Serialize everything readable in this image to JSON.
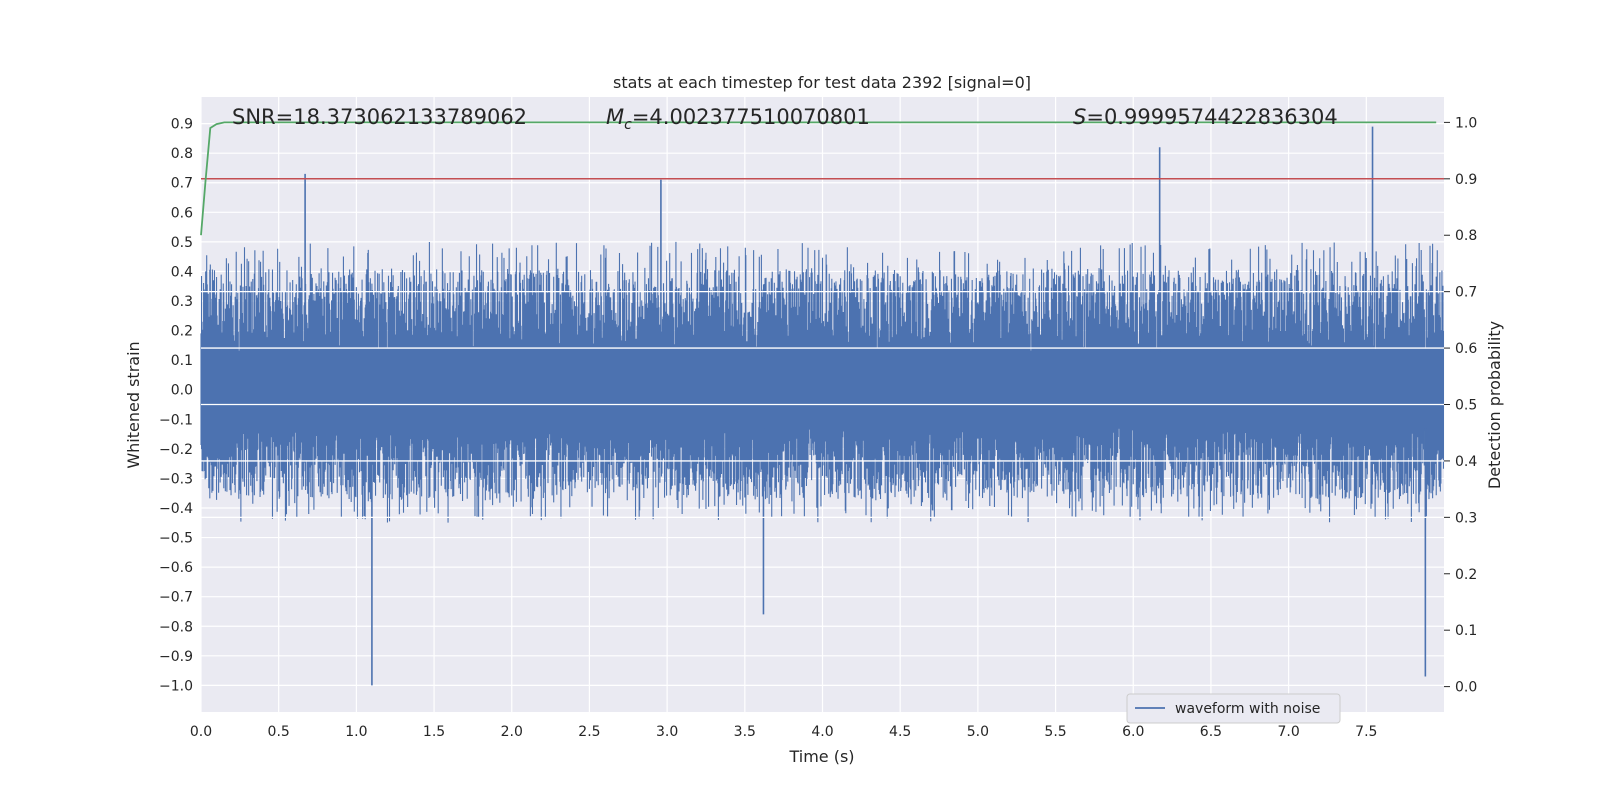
{
  "chart_data": {
    "type": "line",
    "title": "stats at each timestep for test data 2392 [signal=0]",
    "xlabel": "Time (s)",
    "ylabel_left": "Whitened strain",
    "ylabel_right": "Detection probability",
    "xlim": [
      0.0,
      8.0
    ],
    "ylim_left": [
      -1.09,
      0.99
    ],
    "ylim_right": [
      -0.045,
      1.045
    ],
    "x_ticks": [
      0.0,
      0.5,
      1.0,
      1.5,
      2.0,
      2.5,
      3.0,
      3.5,
      4.0,
      4.5,
      5.0,
      5.5,
      6.0,
      6.5,
      7.0,
      7.5
    ],
    "x_tick_labels": [
      "0.0",
      "0.5",
      "1.0",
      "1.5",
      "2.0",
      "2.5",
      "3.0",
      "3.5",
      "4.0",
      "4.5",
      "5.0",
      "5.5",
      "6.0",
      "6.5",
      "7.0",
      "7.5"
    ],
    "y_left_ticks": [
      0.9,
      0.8,
      0.7,
      0.6,
      0.5,
      0.4,
      0.3,
      0.2,
      0.1,
      0.0,
      -0.1,
      -0.2,
      -0.3,
      -0.4,
      -0.5,
      -0.6,
      -0.7,
      -0.8,
      -0.9,
      -1.0
    ],
    "y_left_tick_labels": [
      "0.9",
      "0.8",
      "0.7",
      "0.6",
      "0.5",
      "0.4",
      "0.3",
      "0.2",
      "0.1",
      "0.0",
      "−0.1",
      "−0.2",
      "−0.3",
      "−0.4",
      "−0.5",
      "−0.6",
      "−0.7",
      "−0.8",
      "−0.9",
      "−1.0"
    ],
    "y_right_ticks": [
      1.0,
      0.9,
      0.8,
      0.7,
      0.6,
      0.5,
      0.4,
      0.3,
      0.2,
      0.1,
      0.0
    ],
    "y_right_tick_labels": [
      "1.0",
      "0.9",
      "0.8",
      "0.7",
      "0.6",
      "0.5",
      "0.4",
      "0.3",
      "0.2",
      "0.1",
      "0.0"
    ],
    "grid": true,
    "series": [
      {
        "name": "waveform with noise",
        "axis": "left",
        "color": "#4c72b0",
        "kind": "noise",
        "duration": 8.0,
        "core_half_range": 0.13,
        "typical_pos_peak": 0.5,
        "typical_neg_peak": -0.45,
        "notable_peaks": [
          {
            "x": 0.67,
            "y": 0.73
          },
          {
            "x": 1.1,
            "y": -1.0
          },
          {
            "x": 2.96,
            "y": 0.71
          },
          {
            "x": 3.62,
            "y": -0.76
          },
          {
            "x": 6.17,
            "y": 0.82
          },
          {
            "x": 7.54,
            "y": 0.89
          },
          {
            "x": 7.88,
            "y": -0.97
          }
        ]
      },
      {
        "name": "detection probability",
        "axis": "right",
        "color": "#55a868",
        "x": [
          0.0,
          0.03,
          0.06,
          0.1,
          0.15,
          0.3,
          1.0,
          2.0,
          4.0,
          6.0,
          7.95
        ],
        "values": [
          0.8,
          0.9,
          0.99,
          0.997,
          1.0,
          1.0,
          1.0,
          1.0,
          1.0,
          1.0,
          1.0
        ]
      },
      {
        "name": "threshold",
        "axis": "right",
        "color": "#c44e52",
        "x": [
          0.0,
          8.0
        ],
        "values": [
          0.9,
          0.9
        ]
      }
    ],
    "annotations": {
      "snr": "SNR=18.373062133789062",
      "mc_symbol": "M",
      "mc_sub": "c",
      "mc_value": "=4.002377510070801",
      "s_symbol": "S",
      "s_value": "=0.9999574422836304"
    },
    "legend": {
      "label": "waveform with noise",
      "location": "lower-right"
    }
  }
}
